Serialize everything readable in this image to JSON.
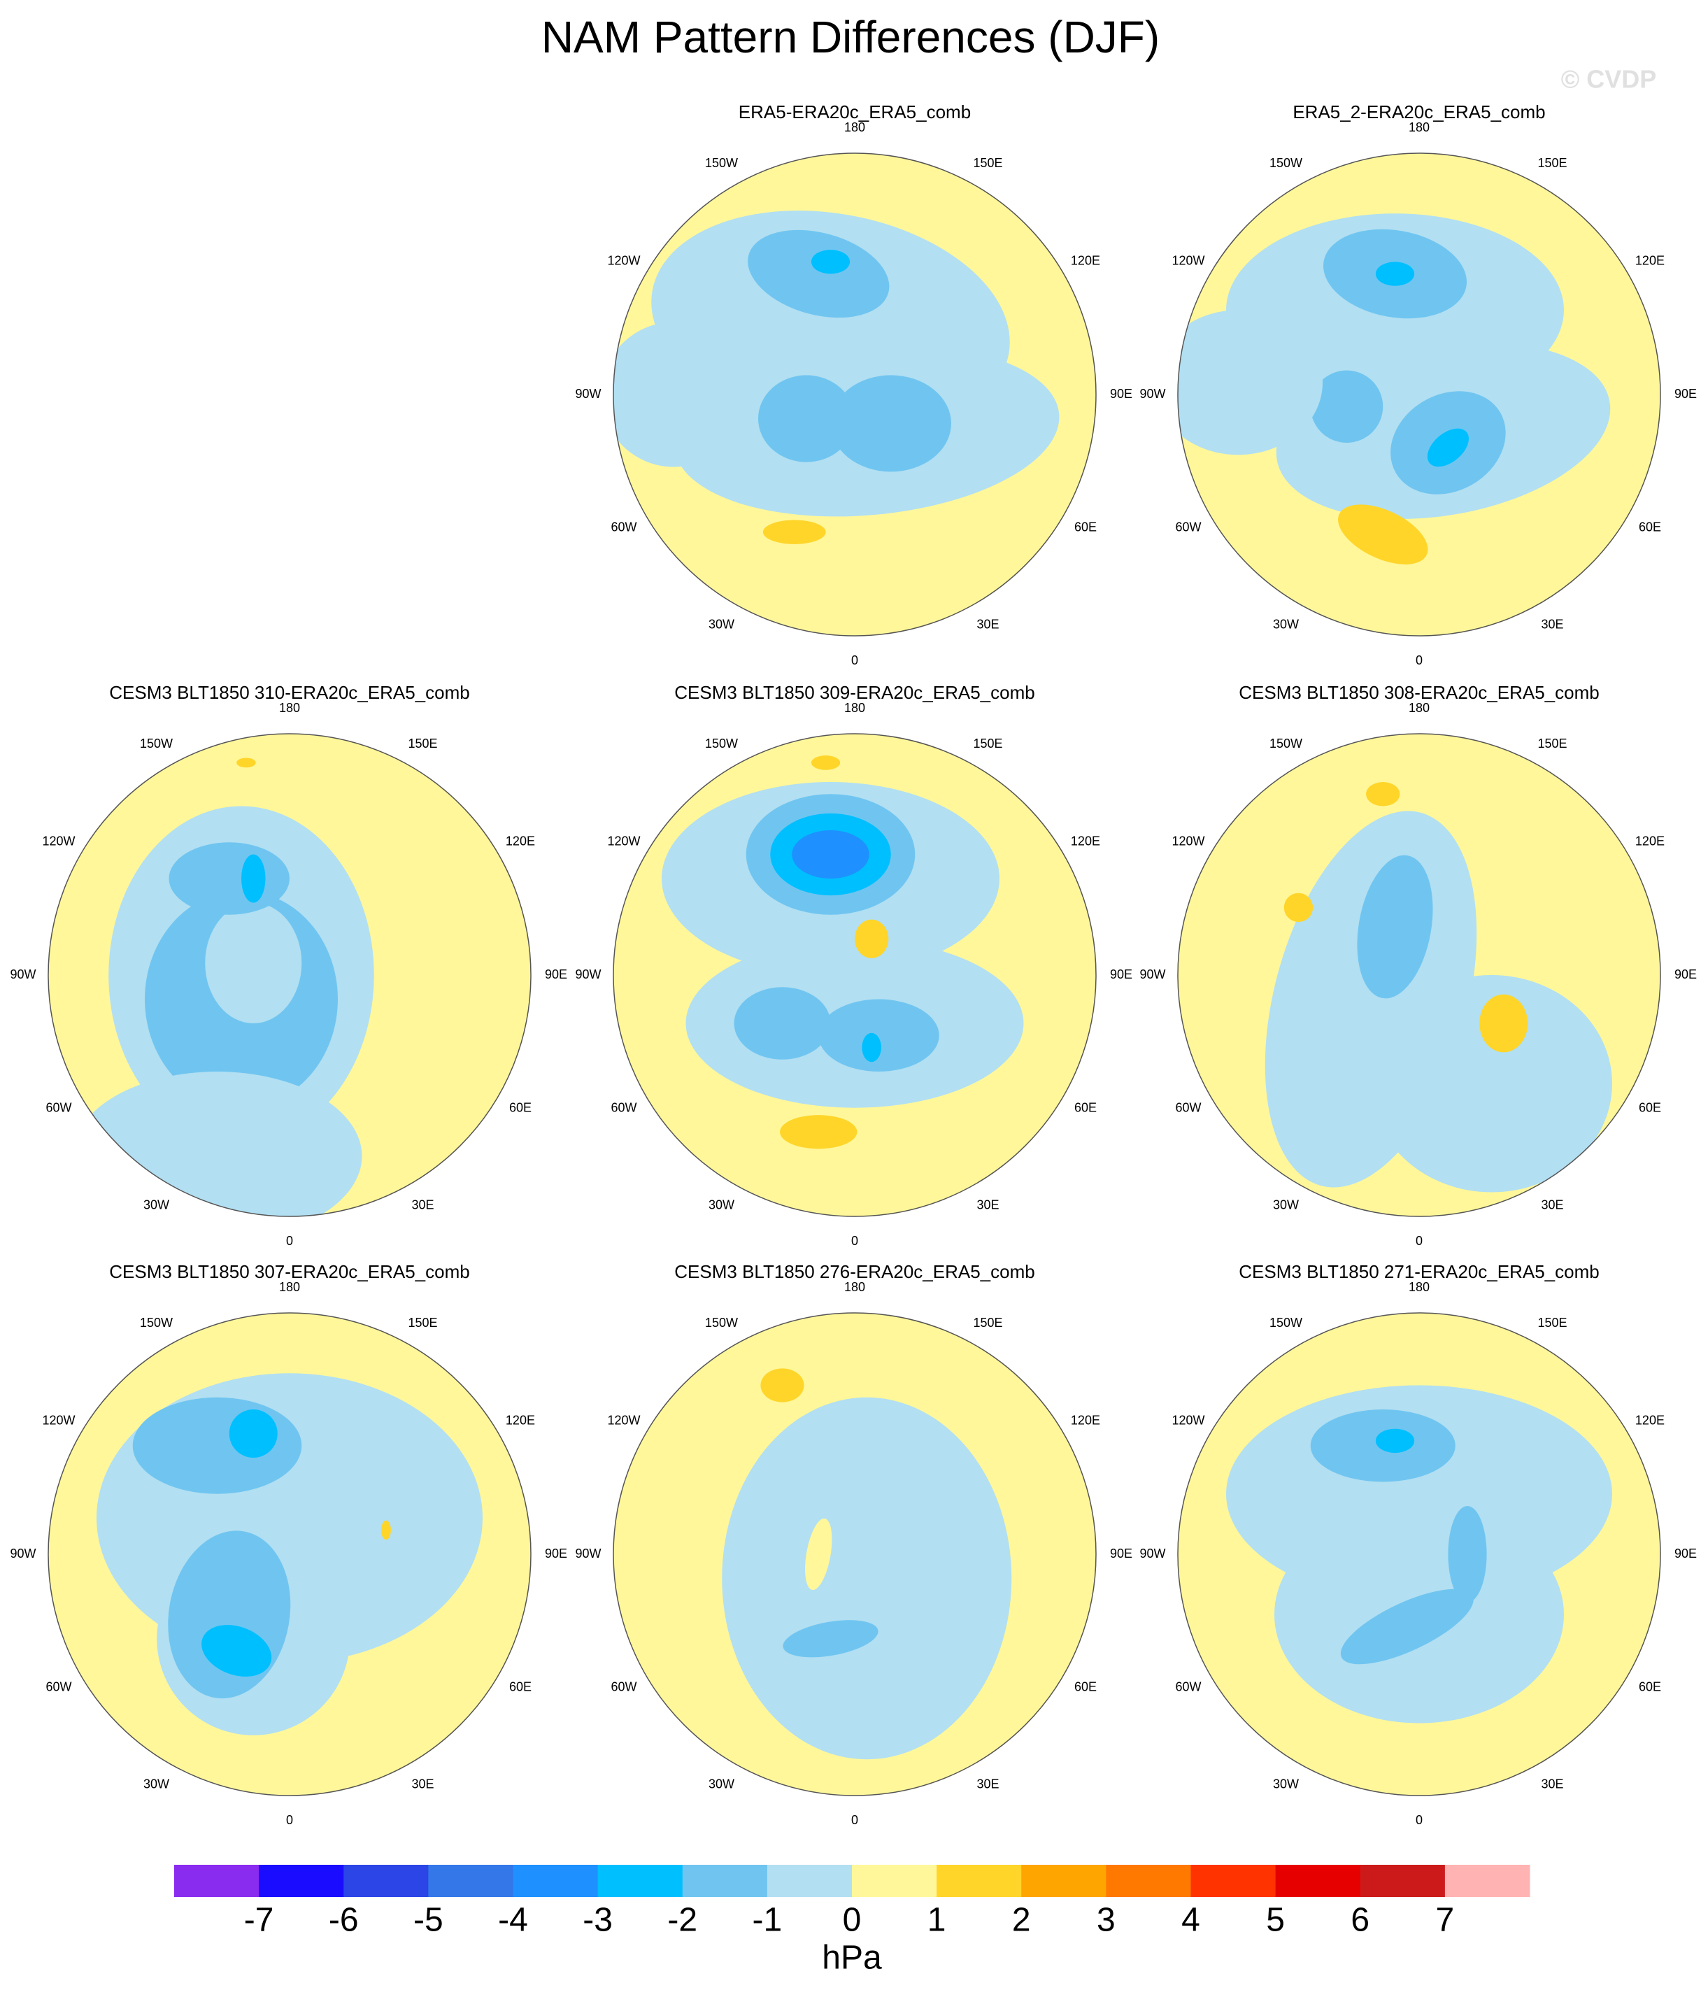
{
  "title": "NAM Pattern Differences (DJF)",
  "watermark": "© CVDP",
  "panels": [
    {
      "title": "ERA5-ERA20c_ERA5_comb"
    },
    {
      "title": "ERA5_2-ERA20c_ERA5_comb"
    },
    {
      "title": "CESM3 BLT1850 310-ERA20c_ERA5_comb"
    },
    {
      "title": "CESM3 BLT1850 309-ERA20c_ERA5_comb"
    },
    {
      "title": "CESM3 BLT1850 308-ERA20c_ERA5_comb"
    },
    {
      "title": "CESM3 BLT1850 307-ERA20c_ERA5_comb"
    },
    {
      "title": "CESM3 BLT1850 276-ERA20c_ERA5_comb"
    },
    {
      "title": "CESM3 BLT1850 271-ERA20c_ERA5_comb"
    }
  ],
  "lon_labels": [
    "0",
    "30E",
    "60E",
    "90E",
    "120E",
    "150E",
    "180",
    "150W",
    "120W",
    "90W",
    "60W",
    "30W"
  ],
  "colorbar": {
    "levels": [
      -7,
      -6,
      -5,
      -4,
      -3,
      -2,
      -1,
      0,
      1,
      2,
      3,
      4,
      5,
      6,
      7
    ],
    "colors": [
      "#8a2bf0",
      "#1a0dff",
      "#2b45e6",
      "#3377e8",
      "#1e90ff",
      "#00bfff",
      "#70c5f0",
      "#b2dff2",
      "#fff79a",
      "#ffd52a",
      "#ffa500",
      "#ff7800",
      "#ff3300",
      "#e60000",
      "#cc1a1a",
      "#ffb3b3"
    ],
    "unit": "hPa"
  }
}
